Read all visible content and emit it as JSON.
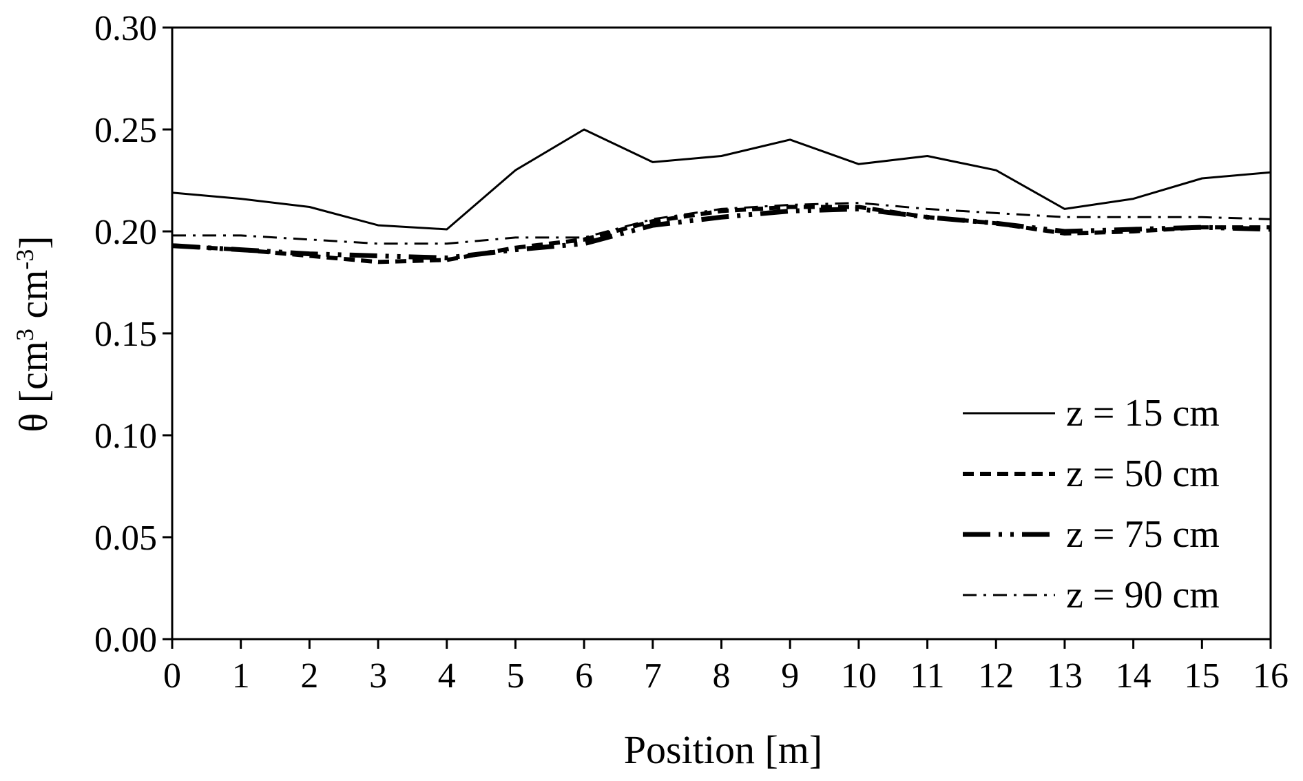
{
  "chart_data": {
    "type": "line",
    "xlabel": "Position [m]",
    "ylabel": {
      "symbol": "θ [cm",
      "exp1": "3",
      "mid": " cm",
      "exp2": "-3",
      "end": "]"
    },
    "xlim": [
      0,
      16
    ],
    "ylim": [
      0,
      0.3
    ],
    "x_ticks": [
      "0",
      "1",
      "2",
      "3",
      "4",
      "5",
      "6",
      "7",
      "8",
      "9",
      "10",
      "11",
      "12",
      "13",
      "14",
      "15",
      "16"
    ],
    "y_ticks": [
      "0.00",
      "0.05",
      "0.10",
      "0.15",
      "0.20",
      "0.25",
      "0.30"
    ],
    "grid": false,
    "legend_position": "bottom-right",
    "x": [
      0,
      1,
      2,
      3,
      4,
      5,
      6,
      7,
      8,
      9,
      10,
      11,
      12,
      13,
      14,
      15,
      16
    ],
    "series": [
      {
        "name": "z = 15 cm",
        "style": "solid",
        "values": [
          0.219,
          0.216,
          0.212,
          0.203,
          0.201,
          0.23,
          0.25,
          0.234,
          0.237,
          0.245,
          0.233,
          0.237,
          0.23,
          0.211,
          0.216,
          0.226,
          0.229
        ]
      },
      {
        "name": "z = 50 cm",
        "style": "dashed",
        "values": [
          0.193,
          0.191,
          0.188,
          0.185,
          0.186,
          0.192,
          0.196,
          0.205,
          0.21,
          0.212,
          0.212,
          0.207,
          0.204,
          0.199,
          0.2,
          0.202,
          0.202
        ]
      },
      {
        "name": "z = 75 cm",
        "style": "long-dash-dot-dot",
        "values": [
          0.193,
          0.191,
          0.189,
          0.188,
          0.187,
          0.191,
          0.194,
          0.203,
          0.207,
          0.21,
          0.211,
          0.207,
          0.204,
          0.2,
          0.201,
          0.202,
          0.201
        ]
      },
      {
        "name": "z = 90 cm",
        "style": "dash-dot",
        "values": [
          0.198,
          0.198,
          0.196,
          0.194,
          0.194,
          0.197,
          0.197,
          0.206,
          0.211,
          0.213,
          0.214,
          0.211,
          0.209,
          0.207,
          0.207,
          0.207,
          0.206
        ]
      }
    ],
    "legend_labels": [
      "z = 15 cm",
      "z = 50 cm",
      "z = 75 cm",
      "z = 90 cm"
    ]
  }
}
